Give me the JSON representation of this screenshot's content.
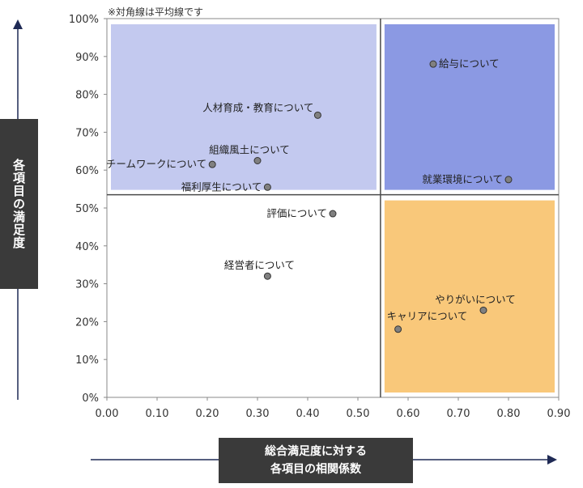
{
  "note": "※対角線は平均線です",
  "y_axis_label": "各項目の満足度",
  "x_axis_label_lines": [
    "総合満足度に対する",
    "各項目の相関係数"
  ],
  "colors": {
    "top_left_zone": "#c3c9ef",
    "top_right_zone": "#8b99e3",
    "bottom_right_zone": "#f9c87a",
    "point_fill": "#808080",
    "divider": "#4a4a4a",
    "arrow": "#1f2a55"
  },
  "chart_data": {
    "type": "scatter",
    "xlabel": "総合満足度に対する各項目の相関係数",
    "ylabel": "各項目の満足度",
    "xlim": [
      0.0,
      0.9
    ],
    "ylim": [
      0,
      100
    ],
    "x_ticks": [
      "0.00",
      "0.10",
      "0.20",
      "0.30",
      "0.40",
      "0.50",
      "0.60",
      "0.70",
      "0.80",
      "0.90"
    ],
    "y_ticks": [
      "0%",
      "10%",
      "20%",
      "30%",
      "40%",
      "50%",
      "60%",
      "70%",
      "80%",
      "90%",
      "100%"
    ],
    "grid": false,
    "average_lines": {
      "x": 0.545,
      "y": 53.5
    },
    "points": [
      {
        "label": "給与について",
        "x": 0.65,
        "y": 88,
        "label_pos": "right"
      },
      {
        "label": "人材育成・教育について",
        "x": 0.42,
        "y": 74.5,
        "label_pos": "left-above"
      },
      {
        "label": "組織風土について",
        "x": 0.3,
        "y": 62.5,
        "label_pos": "above"
      },
      {
        "label": "チームワークについて",
        "x": 0.21,
        "y": 61.5,
        "label_pos": "left"
      },
      {
        "label": "福利厚生について",
        "x": 0.32,
        "y": 55.5,
        "label_pos": "left"
      },
      {
        "label": "就業環境について",
        "x": 0.8,
        "y": 57.5,
        "label_pos": "left"
      },
      {
        "label": "評価について",
        "x": 0.45,
        "y": 48.5,
        "label_pos": "left"
      },
      {
        "label": "経営者について",
        "x": 0.32,
        "y": 32,
        "label_pos": "above"
      },
      {
        "label": "やりがいについて",
        "x": 0.75,
        "y": 23,
        "label_pos": "above"
      },
      {
        "label": "キャリアについて",
        "x": 0.58,
        "y": 18,
        "label_pos": "right-above"
      }
    ]
  }
}
